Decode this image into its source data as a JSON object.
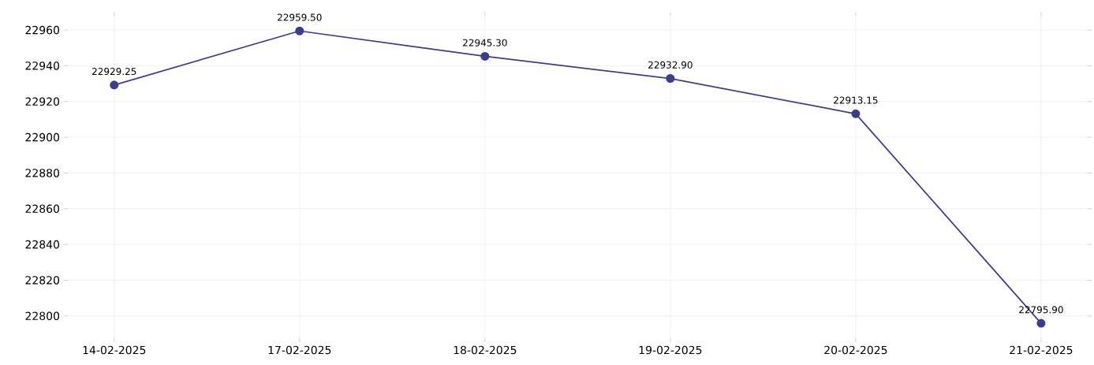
{
  "chart_data": {
    "type": "line",
    "categories": [
      "14-02-2025",
      "17-02-2025",
      "18-02-2025",
      "19-02-2025",
      "20-02-2025",
      "21-02-2025"
    ],
    "values": [
      22929.25,
      22959.5,
      22945.3,
      22932.9,
      22913.15,
      22795.9
    ],
    "value_labels": [
      "22929.25",
      "22959.50",
      "22945.30",
      "22932.90",
      "22913.15",
      "22795.90"
    ],
    "color": "#3d3d8f",
    "ylim": [
      22787.7,
      22967.7
    ],
    "yticks": [
      22800,
      22820,
      22840,
      22860,
      22880,
      22900,
      22920,
      22940,
      22960
    ],
    "grid": true,
    "marker": "circle",
    "line_style": "solid"
  }
}
